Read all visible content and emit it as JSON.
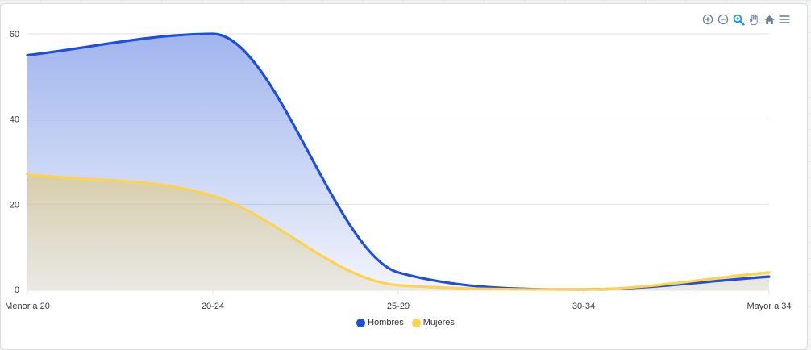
{
  "chart_data": {
    "type": "area",
    "categories": [
      "Menor a 20",
      "20-24",
      "25-29",
      "30-34",
      "Mayor a 34"
    ],
    "series": [
      {
        "name": "Hombres",
        "values": [
          55,
          60,
          4,
          0,
          3
        ],
        "color": "#1f4fd6"
      },
      {
        "name": "Mujeres",
        "values": [
          27,
          22,
          1,
          0,
          4
        ],
        "color": "#fdd34e"
      }
    ],
    "yticks": [
      0,
      20,
      40,
      60
    ],
    "ylim": [
      0,
      60
    ],
    "grid": true,
    "legend": "bottom-center",
    "curve": "smooth"
  },
  "toolbar": {
    "icons": [
      "zoom-in-icon",
      "zoom-out-icon",
      "selection-zoom-icon",
      "pan-hand-icon",
      "home-reset-icon",
      "menu-icon"
    ],
    "active_color": "#008ffb",
    "idle_color": "#6e8192"
  }
}
